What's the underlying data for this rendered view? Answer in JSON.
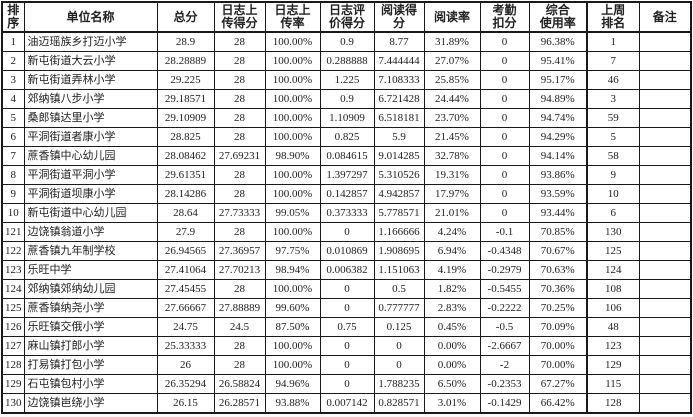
{
  "table": {
    "columns": [
      {
        "key": "rank",
        "label": "排\n序"
      },
      {
        "key": "unit-name",
        "label": "单位名称"
      },
      {
        "key": "total-score",
        "label": "总分"
      },
      {
        "key": "upload-score",
        "label": "日志上\n传得分"
      },
      {
        "key": "upload-rate",
        "label": "日志上\n传率"
      },
      {
        "key": "eval-score",
        "label": "日志评\n价得分"
      },
      {
        "key": "read-score",
        "label": "阅读得\n分"
      },
      {
        "key": "read-rate",
        "label": "阅读率"
      },
      {
        "key": "attendance",
        "label": "考勤\n扣分"
      },
      {
        "key": "usage-rate",
        "label": "综合\n使用率"
      },
      {
        "key": "last-week",
        "label": "上周\n排名"
      },
      {
        "key": "remark",
        "label": "备注"
      }
    ],
    "rows": [
      {
        "cells": [
          "1",
          "油迈瑶族乡打迈小学",
          "28.9",
          "28",
          "100.00%",
          "0.9",
          "8.77",
          "31.89%",
          "0",
          "96.38%",
          "1",
          ""
        ]
      },
      {
        "cells": [
          "2",
          "新屯街道大云小学",
          "28.28889",
          "28",
          "100.00%",
          "0.288888",
          "7.444444",
          "27.07%",
          "0",
          "95.41%",
          "7",
          ""
        ]
      },
      {
        "cells": [
          "3",
          "新屯街道弄林小学",
          "29.225",
          "28",
          "100.00%",
          "1.225",
          "7.108333",
          "25.85%",
          "0",
          "95.17%",
          "46",
          ""
        ]
      },
      {
        "cells": [
          "4",
          "郊纳镇八步小学",
          "29.18571",
          "28",
          "100.00%",
          "0.9",
          "6.721428",
          "24.44%",
          "0",
          "94.89%",
          "3",
          ""
        ]
      },
      {
        "cells": [
          "5",
          "桑郎镇达里小学",
          "29.10909",
          "28",
          "100.00%",
          "1.10909",
          "6.518181",
          "23.70%",
          "0",
          "94.74%",
          "59",
          ""
        ]
      },
      {
        "cells": [
          "6",
          "平洞街道者康小学",
          "28.825",
          "28",
          "100.00%",
          "0.825",
          "5.9",
          "21.45%",
          "0",
          "94.29%",
          "5",
          ""
        ]
      },
      {
        "cells": [
          "7",
          "蔗香镇中心幼儿园",
          "28.08462",
          "27.69231",
          "98.90%",
          "0.084615",
          "9.014285",
          "32.78%",
          "0",
          "94.14%",
          "58",
          ""
        ]
      },
      {
        "cells": [
          "8",
          "平洞街道平洞小学",
          "29.61351",
          "28",
          "100.00%",
          "1.397297",
          "5.310526",
          "19.31%",
          "0",
          "93.86%",
          "9",
          ""
        ]
      },
      {
        "cells": [
          "9",
          "平洞街道坝康小学",
          "28.14286",
          "28",
          "100.00%",
          "0.142857",
          "4.942857",
          "17.97%",
          "0",
          "93.59%",
          "10",
          ""
        ]
      },
      {
        "cells": [
          "10",
          "新屯街道中心幼儿园",
          "28.64",
          "27.73333",
          "99.05%",
          "0.373333",
          "5.778571",
          "21.01%",
          "0",
          "93.44%",
          "6",
          ""
        ]
      },
      {
        "cells": [
          "121",
          "边饶镇翁道小学",
          "27.9",
          "28",
          "100.00%",
          "0",
          "1.166666",
          "4.24%",
          "-0.1",
          "70.85%",
          "130",
          ""
        ]
      },
      {
        "cells": [
          "122",
          "蔗香镇九年制学校",
          "26.94565",
          "27.36957",
          "97.75%",
          "0.010869",
          "1.908695",
          "6.94%",
          "-0.4348",
          "70.67%",
          "125",
          ""
        ]
      },
      {
        "cells": [
          "123",
          "乐旺中学",
          "27.41064",
          "27.70213",
          "98.94%",
          "0.006382",
          "1.151063",
          "4.19%",
          "-0.2979",
          "70.63%",
          "124",
          ""
        ]
      },
      {
        "cells": [
          "124",
          "郊纳镇郊纳幼儿园",
          "27.45455",
          "28",
          "100.00%",
          "0",
          "0.5",
          "1.82%",
          "-0.5455",
          "70.36%",
          "108",
          ""
        ]
      },
      {
        "cells": [
          "125",
          "蔗香镇纳尧小学",
          "27.66667",
          "27.88889",
          "99.60%",
          "0",
          "0.777777",
          "2.83%",
          "-0.2222",
          "70.25%",
          "106",
          ""
        ]
      },
      {
        "cells": [
          "126",
          "乐旺镇交俄小学",
          "24.75",
          "24.5",
          "87.50%",
          "0.75",
          "0.125",
          "0.45%",
          "-0.5",
          "70.09%",
          "48",
          ""
        ]
      },
      {
        "cells": [
          "127",
          "麻山镇打郎小学",
          "25.33333",
          "28",
          "100.00%",
          "0",
          "0",
          "0.00%",
          "-2.6667",
          "70.00%",
          "123",
          ""
        ]
      },
      {
        "cells": [
          "128",
          "打易镇打包小学",
          "26",
          "28",
          "100.00%",
          "0",
          "0",
          "0.00%",
          "-2",
          "70.00%",
          "129",
          ""
        ]
      },
      {
        "cells": [
          "129",
          "石屯镇包村小学",
          "26.35294",
          "26.58824",
          "94.96%",
          "0",
          "1.788235",
          "6.50%",
          "-0.2353",
          "67.27%",
          "115",
          ""
        ]
      },
      {
        "cells": [
          "130",
          "边饶镇岜绕小学",
          "26.15",
          "26.28571",
          "93.88%",
          "0.007142",
          "0.828571",
          "3.01%",
          "-0.1429",
          "66.42%",
          "128",
          ""
        ]
      }
    ]
  }
}
